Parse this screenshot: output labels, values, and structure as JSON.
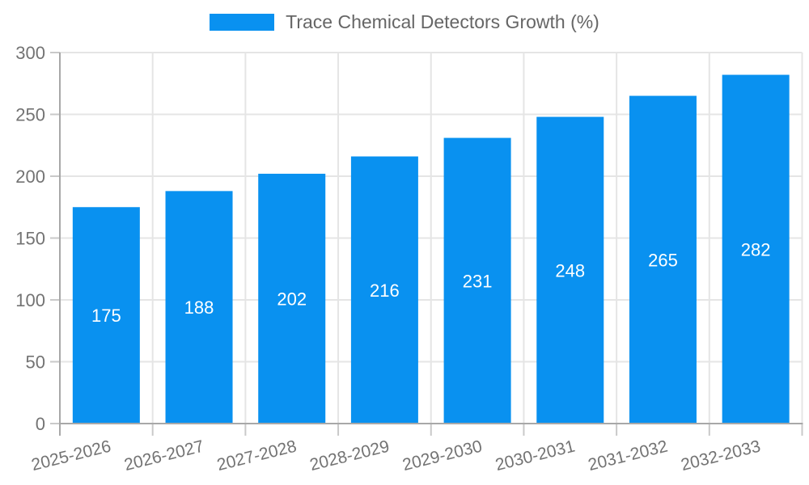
{
  "legend": {
    "label": "Trace Chemical Detectors Growth (%)"
  },
  "colors": {
    "bar": "#0991F0",
    "grid": "#e5e5e5",
    "axis": "#a8a8a8",
    "tick": "#c9c9c9",
    "axis_text": "#737373",
    "value_text": "#ffffff",
    "legend_text": "#666666",
    "background": "#ffffff"
  },
  "chart_data": {
    "type": "bar",
    "title": "Trace Chemical Detectors Growth (%)",
    "categories": [
      "2025-2026",
      "2026-2027",
      "2027-2028",
      "2028-2029",
      "2029-2030",
      "2030-2031",
      "2031-2032",
      "2032-2033"
    ],
    "values": [
      175,
      188,
      202,
      216,
      231,
      248,
      265,
      282
    ],
    "xlabel": "",
    "ylabel": "",
    "ylim": [
      0,
      300
    ],
    "ytick_step": 50,
    "grid": true,
    "gridlines": "horizontal-and-vertical",
    "legend_position": "top-center",
    "x_tick_rotation_deg": -14,
    "value_labels": "inside-middle-white"
  }
}
